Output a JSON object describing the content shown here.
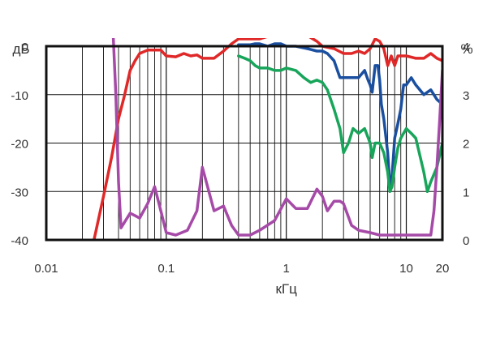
{
  "chart_data": {
    "type": "line",
    "x_scale": "log",
    "xlim": [
      0.01,
      20
    ],
    "ylim": [
      -40,
      0
    ],
    "y2lim": [
      0,
      4
    ],
    "xlabel": "кГц",
    "ylabel": "дБ",
    "y2label": "%",
    "x_ticks": [
      {
        "value": 0.01,
        "label": "0.01"
      },
      {
        "value": 0.1,
        "label": "0.1"
      },
      {
        "value": 1,
        "label": "1"
      },
      {
        "value": 10,
        "label": "10"
      },
      {
        "value": 20,
        "label": "20"
      }
    ],
    "y_ticks": [
      {
        "value": 0,
        "label": "0"
      },
      {
        "value": -10,
        "label": "-10"
      },
      {
        "value": -20,
        "label": "-20"
      },
      {
        "value": -30,
        "label": "-30"
      },
      {
        "value": -40,
        "label": "-40"
      }
    ],
    "y2_ticks": [
      {
        "value": 4,
        "label": "4"
      },
      {
        "value": 3,
        "label": "3"
      },
      {
        "value": 2,
        "label": "2"
      },
      {
        "value": 1,
        "label": "1"
      },
      {
        "value": 0,
        "label": "0"
      }
    ],
    "grid": true,
    "series": [
      {
        "color": "#e02828",
        "axis": "left",
        "points": [
          [
            0.025,
            -40
          ],
          [
            0.03,
            -31
          ],
          [
            0.035,
            -23
          ],
          [
            0.04,
            -15
          ],
          [
            0.045,
            -10
          ],
          [
            0.05,
            -5
          ],
          [
            0.055,
            -3
          ],
          [
            0.06,
            -1.5
          ],
          [
            0.07,
            -0.8
          ],
          [
            0.08,
            -0.8
          ],
          [
            0.09,
            -0.8
          ],
          [
            0.1,
            -2
          ],
          [
            0.12,
            -2.2
          ],
          [
            0.14,
            -1.5
          ],
          [
            0.16,
            -2
          ],
          [
            0.18,
            -1.8
          ],
          [
            0.2,
            -2.5
          ],
          [
            0.25,
            -2.5
          ],
          [
            0.3,
            -1
          ],
          [
            0.35,
            0.5
          ],
          [
            0.4,
            1.5
          ],
          [
            0.5,
            1.5
          ],
          [
            0.6,
            1.5
          ],
          [
            0.7,
            2
          ],
          [
            0.8,
            2.2
          ],
          [
            1,
            2.5
          ],
          [
            1.2,
            2.5
          ],
          [
            1.5,
            2.2
          ],
          [
            1.8,
            1
          ],
          [
            2,
            0
          ],
          [
            2.5,
            -0.5
          ],
          [
            3,
            -1.5
          ],
          [
            3.5,
            -1.5
          ],
          [
            4,
            -1
          ],
          [
            4.5,
            -1.5
          ],
          [
            5,
            -0.5
          ],
          [
            5.5,
            1.5
          ],
          [
            6,
            1
          ],
          [
            6.5,
            -0.5
          ],
          [
            7,
            -4
          ],
          [
            7.5,
            -2
          ],
          [
            8,
            -4
          ],
          [
            8.5,
            -2
          ],
          [
            9,
            -2
          ],
          [
            10,
            -2
          ],
          [
            12,
            -2.5
          ],
          [
            14,
            -2.5
          ],
          [
            16,
            -1.5
          ],
          [
            18,
            -2.5
          ],
          [
            20,
            -3
          ]
        ]
      },
      {
        "color": "#1a4fa0",
        "axis": "left",
        "points": [
          [
            0.4,
            0.3
          ],
          [
            0.5,
            0.3
          ],
          [
            0.55,
            0.5
          ],
          [
            0.6,
            0.5
          ],
          [
            0.7,
            0
          ],
          [
            0.8,
            0.5
          ],
          [
            0.9,
            0.5
          ],
          [
            1,
            0
          ],
          [
            1.2,
            0
          ],
          [
            1.5,
            -0.5
          ],
          [
            1.8,
            -1
          ],
          [
            2,
            -1
          ],
          [
            2.2,
            -1.5
          ],
          [
            2.5,
            -3
          ],
          [
            2.8,
            -6.5
          ],
          [
            3,
            -6.5
          ],
          [
            3.5,
            -6.5
          ],
          [
            4,
            -6.5
          ],
          [
            4.5,
            -5
          ],
          [
            4.8,
            -7
          ],
          [
            5,
            -8
          ],
          [
            5.2,
            -9.5
          ],
          [
            5.5,
            -4
          ],
          [
            5.8,
            -4
          ],
          [
            6,
            -7
          ],
          [
            6.2,
            -12
          ],
          [
            6.5,
            -15
          ],
          [
            7,
            -22
          ],
          [
            7.3,
            -29
          ],
          [
            7.6,
            -27
          ],
          [
            8,
            -19
          ],
          [
            8.5,
            -16
          ],
          [
            9,
            -13
          ],
          [
            9.5,
            -8
          ],
          [
            10,
            -8
          ],
          [
            11,
            -6.5
          ],
          [
            12,
            -8
          ],
          [
            14,
            -10
          ],
          [
            16,
            -9
          ],
          [
            18,
            -11
          ],
          [
            20,
            -12
          ]
        ]
      },
      {
        "color": "#18a55a",
        "axis": "left",
        "points": [
          [
            0.4,
            -2
          ],
          [
            0.45,
            -2.5
          ],
          [
            0.5,
            -3
          ],
          [
            0.55,
            -4
          ],
          [
            0.6,
            -4.5
          ],
          [
            0.7,
            -4.5
          ],
          [
            0.8,
            -5
          ],
          [
            0.9,
            -5
          ],
          [
            1,
            -4.5
          ],
          [
            1.2,
            -5
          ],
          [
            1.4,
            -6.5
          ],
          [
            1.6,
            -7.5
          ],
          [
            1.8,
            -7
          ],
          [
            2,
            -7.5
          ],
          [
            2.2,
            -9
          ],
          [
            2.5,
            -13
          ],
          [
            2.8,
            -17
          ],
          [
            3,
            -22
          ],
          [
            3.3,
            -20
          ],
          [
            3.6,
            -17
          ],
          [
            4,
            -18
          ],
          [
            4.5,
            -17
          ],
          [
            5,
            -20
          ],
          [
            5.2,
            -23
          ],
          [
            5.5,
            -20
          ],
          [
            6,
            -20
          ],
          [
            6.5,
            -22
          ],
          [
            7,
            -26
          ],
          [
            7.3,
            -30
          ],
          [
            7.6,
            -29
          ],
          [
            8,
            -25
          ],
          [
            8.5,
            -21
          ],
          [
            9,
            -19
          ],
          [
            10,
            -17
          ],
          [
            11,
            -18
          ],
          [
            12,
            -19
          ],
          [
            14,
            -26
          ],
          [
            15,
            -30
          ],
          [
            16,
            -28
          ],
          [
            18,
            -25
          ],
          [
            20,
            -20
          ]
        ]
      },
      {
        "color": "#a64aa8",
        "axis": "right",
        "points": [
          [
            0.035,
            5
          ],
          [
            0.038,
            3
          ],
          [
            0.04,
            1.2
          ],
          [
            0.042,
            0.25
          ],
          [
            0.05,
            0.55
          ],
          [
            0.055,
            0.5
          ],
          [
            0.06,
            0.45
          ],
          [
            0.07,
            0.75
          ],
          [
            0.08,
            1.1
          ],
          [
            0.09,
            0.6
          ],
          [
            0.1,
            0.15
          ],
          [
            0.12,
            0.1
          ],
          [
            0.15,
            0.2
          ],
          [
            0.18,
            0.6
          ],
          [
            0.2,
            1.5
          ],
          [
            0.25,
            0.6
          ],
          [
            0.3,
            0.7
          ],
          [
            0.35,
            0.3
          ],
          [
            0.4,
            0.1
          ],
          [
            0.5,
            0.1
          ],
          [
            0.6,
            0.2
          ],
          [
            0.8,
            0.4
          ],
          [
            1,
            0.85
          ],
          [
            1.2,
            0.65
          ],
          [
            1.5,
            0.65
          ],
          [
            1.8,
            1.05
          ],
          [
            2,
            0.9
          ],
          [
            2.2,
            0.6
          ],
          [
            2.5,
            0.8
          ],
          [
            2.8,
            0.8
          ],
          [
            3,
            0.75
          ],
          [
            3.5,
            0.3
          ],
          [
            4,
            0.2
          ],
          [
            5,
            0.15
          ],
          [
            6,
            0.1
          ],
          [
            8,
            0.1
          ],
          [
            10,
            0.1
          ],
          [
            12,
            0.1
          ],
          [
            15,
            0.1
          ],
          [
            16,
            0.1
          ],
          [
            17,
            0.6
          ],
          [
            18,
            1.5
          ],
          [
            19,
            2.5
          ],
          [
            20,
            3.5
          ]
        ]
      }
    ]
  }
}
